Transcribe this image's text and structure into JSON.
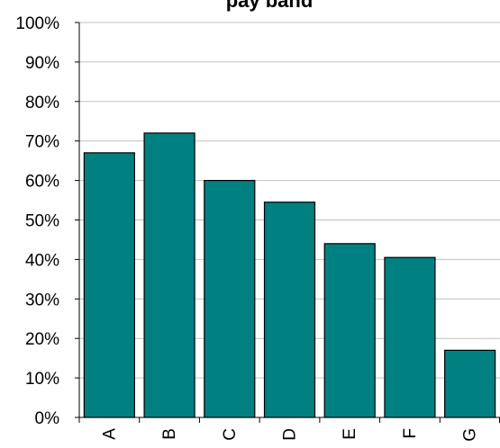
{
  "chart_data": {
    "type": "bar",
    "title": "pay band",
    "categories": [
      "A",
      "B",
      "C",
      "D",
      "E",
      "F",
      "G"
    ],
    "values": [
      0.67,
      0.72,
      0.6,
      0.545,
      0.44,
      0.405,
      0.17
    ],
    "ylim": [
      0,
      1
    ],
    "yticks": [
      "0%",
      "10%",
      "20%",
      "30%",
      "40%",
      "50%",
      "60%",
      "70%",
      "80%",
      "90%",
      "100%"
    ],
    "grid": true,
    "legend": "none",
    "colors": {
      "bar": "#008080",
      "bar_outline": "#000000",
      "grid": "#c0c0c0",
      "axis": "#000000"
    }
  }
}
